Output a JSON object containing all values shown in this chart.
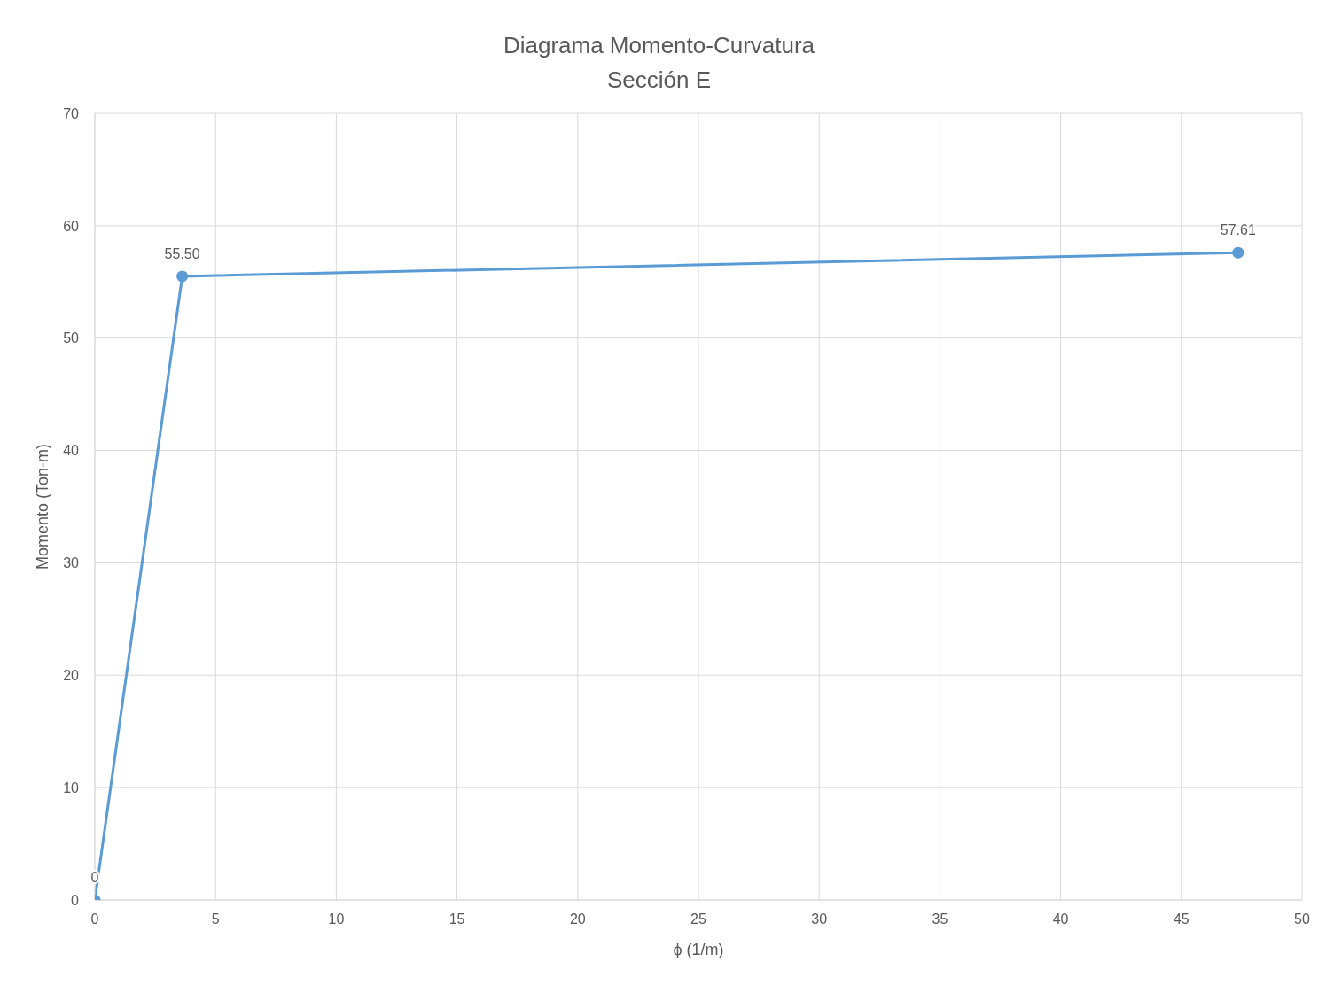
{
  "chart_data": {
    "type": "line",
    "title": "Diagrama Momento-Curvatura",
    "subtitle": "Sección E",
    "xlabel": "ϕ (1/m)",
    "ylabel": "Momento (Ton-m)",
    "x": [
      0,
      3.62,
      47.35
    ],
    "series": [
      {
        "color": "#5b9bd5",
        "values": [
          0,
          55.5,
          57.61
        ],
        "value_labels": [
          "0",
          "55.50",
          "57.61"
        ]
      }
    ],
    "xlim": [
      0,
      50
    ],
    "xticks": [
      0,
      5,
      10,
      15,
      20,
      25,
      30,
      35,
      40,
      45,
      50
    ],
    "ylim": [
      0,
      70
    ],
    "yticks": [
      0,
      10,
      20,
      30,
      40,
      50,
      60,
      70
    ],
    "grid": true,
    "legend": false,
    "marker": "circle",
    "line_style": "solid"
  }
}
